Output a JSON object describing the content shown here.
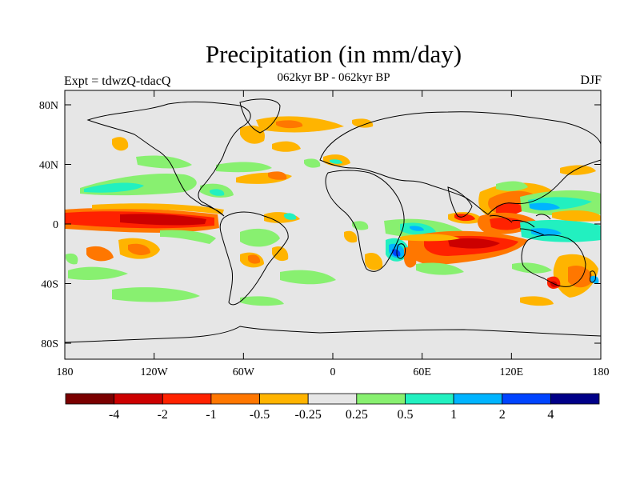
{
  "header": {
    "title": "Precipitation (in mm/day)",
    "subtitle": "062kyr BP - 062kyr BP",
    "left_label": "Expt = tdwzQ-tdacQ",
    "right_label": "DJF"
  },
  "axes": {
    "x_ticks": [
      "180",
      "120W",
      "60W",
      "0",
      "60E",
      "120E",
      "180"
    ],
    "y_ticks": [
      "80N",
      "40N",
      "0",
      "40S",
      "80S"
    ]
  },
  "colorbar": {
    "colors": [
      "#7a0000",
      "#cc0000",
      "#ff2200",
      "#ff7700",
      "#ffb400",
      "#e6e6e6",
      "#88f070",
      "#22f0c0",
      "#00b4ff",
      "#0044ff",
      "#000088"
    ],
    "labels": [
      "-4",
      "-2",
      "-1",
      "-0.5",
      "-0.25",
      "0.25",
      "0.5",
      "1",
      "2",
      "4"
    ]
  },
  "colors": {
    "background": "#e6e6e6",
    "coastline": "#000000"
  }
}
